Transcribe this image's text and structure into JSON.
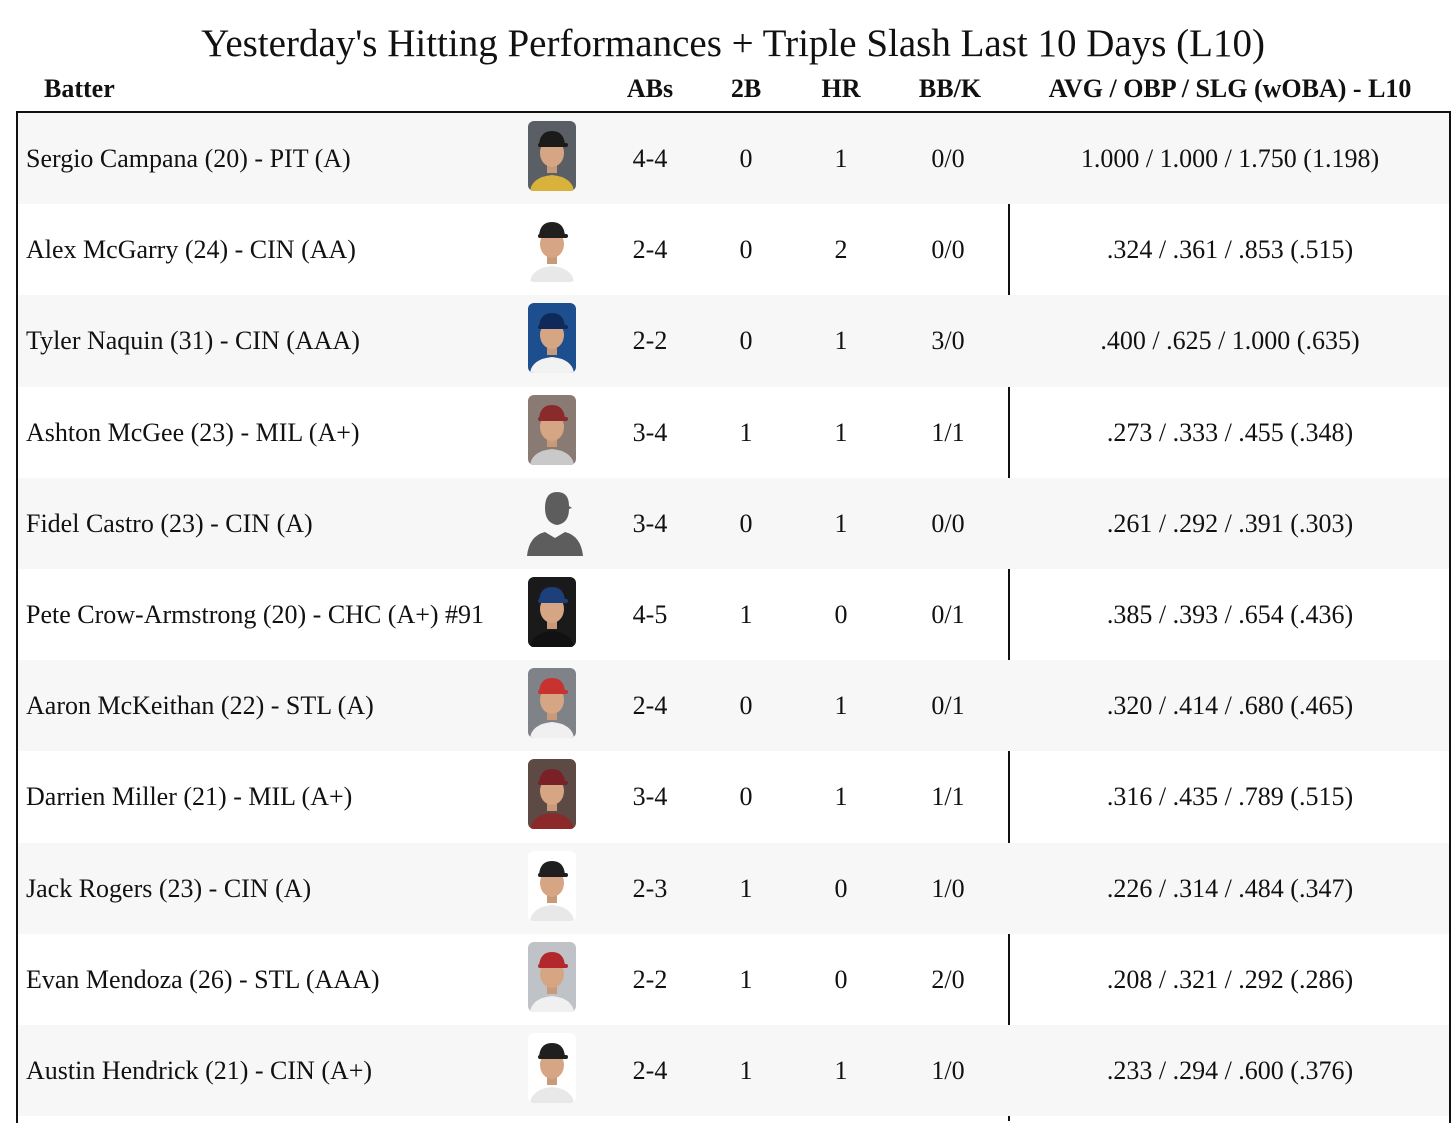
{
  "title": "Yesterday's Hitting Performances + Triple Slash Last 10 Days (L10)",
  "headers": {
    "batter": "Batter",
    "abs": "ABs",
    "doubles": "2B",
    "hr": "HR",
    "bbk": "BB/K",
    "slash": "AVG / OBP / SLG (wOBA) - L10"
  },
  "rows": [
    {
      "name": "Sergio Campana (20) - PIT (A)",
      "abs": "4-4",
      "doubles": "0",
      "hr": "1",
      "bbk": "0/0",
      "slash": "1.000 / 1.000 / 1.750 (1.198)"
    },
    {
      "name": "Alex McGarry (24) - CIN (AA)",
      "abs": "2-4",
      "doubles": "0",
      "hr": "2",
      "bbk": "0/0",
      "slash": ".324 / .361 / .853 (.515)"
    },
    {
      "name": "Tyler Naquin (31) - CIN (AAA)",
      "abs": "2-2",
      "doubles": "0",
      "hr": "1",
      "bbk": "3/0",
      "slash": ".400 / .625 / 1.000 (.635)"
    },
    {
      "name": "Ashton McGee (23) - MIL (A+)",
      "abs": "3-4",
      "doubles": "1",
      "hr": "1",
      "bbk": "1/1",
      "slash": ".273 / .333 / .455 (.348)"
    },
    {
      "name": "Fidel Castro (23) - CIN (A)",
      "abs": "3-4",
      "doubles": "0",
      "hr": "1",
      "bbk": "0/0",
      "slash": ".261 / .292 / .391 (.303)"
    },
    {
      "name": "Pete Crow-Armstrong (20) - CHC (A+) #91",
      "abs": "4-5",
      "doubles": "1",
      "hr": "0",
      "bbk": "0/1",
      "slash": ".385 / .393 / .654 (.436)"
    },
    {
      "name": "Aaron McKeithan (22) - STL (A)",
      "abs": "2-4",
      "doubles": "0",
      "hr": "1",
      "bbk": "0/1",
      "slash": ".320 / .414 / .680 (.465)"
    },
    {
      "name": "Darrien Miller (21) - MIL (A+)",
      "abs": "3-4",
      "doubles": "0",
      "hr": "1",
      "bbk": "1/1",
      "slash": ".316 / .435 / .789 (.515)"
    },
    {
      "name": "Jack Rogers (23) - CIN (A)",
      "abs": "2-3",
      "doubles": "1",
      "hr": "0",
      "bbk": "1/0",
      "slash": ".226 / .314 / .484 (.347)"
    },
    {
      "name": "Evan Mendoza (26) - STL (AAA)",
      "abs": "2-2",
      "doubles": "1",
      "hr": "0",
      "bbk": "2/0",
      "slash": ".208 / .321 / .292 (.286)"
    },
    {
      "name": "Austin Hendrick (21) - CIN (A+)",
      "abs": "2-4",
      "doubles": "1",
      "hr": "1",
      "bbk": "1/0",
      "slash": ".233 / .294 / .600 (.376)"
    }
  ],
  "photo_style": [
    {
      "bg": "#5a5f66",
      "cap": "#1b1b1b",
      "shirt": "#d8b23a"
    },
    {
      "bg": "#ffffff",
      "cap": "#1f1f1f",
      "shirt": "#e8e8e8"
    },
    {
      "bg": "#1d4f8f",
      "cap": "#0f2a5a",
      "shirt": "#f2f2f2"
    },
    {
      "bg": "#8a7a74",
      "cap": "#8a2a2a",
      "shirt": "#c9c9c9"
    },
    {
      "bg": "silhouette"
    },
    {
      "bg": "#1a1a1a",
      "cap": "#1d3f7a",
      "shirt": "#111111"
    },
    {
      "bg": "#7f8388",
      "cap": "#c8322f",
      "shirt": "#f0f0f0"
    },
    {
      "bg": "#5e4a45",
      "cap": "#7a2027",
      "shirt": "#8a2a2a"
    },
    {
      "bg": "#ffffff",
      "cap": "#1f1f1f",
      "shirt": "#e8e8e8"
    },
    {
      "bg": "#bfc3c7",
      "cap": "#b3282d",
      "shirt": "#f0f0f0"
    },
    {
      "bg": "#ffffff",
      "cap": "#1f1f1f",
      "shirt": "#e8e8e8"
    }
  ]
}
